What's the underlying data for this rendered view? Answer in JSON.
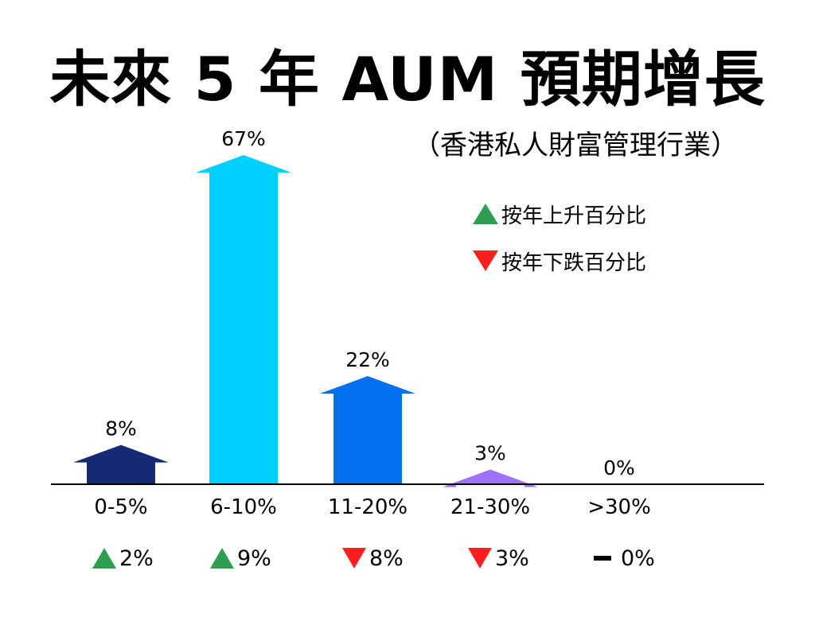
{
  "title": "未來 5 年 AUM 預期增長",
  "subtitle": "（香港私人財富管理行業）",
  "legend": {
    "up_label": "按年上升百分比",
    "down_label": "按年下跌百分比",
    "up_color": "#2e9e4f",
    "down_color": "#ff1e1e"
  },
  "chart_data": {
    "type": "bar",
    "title": "未來 5 年 AUM 預期增長",
    "subtitle": "（香港私人財富管理行業）",
    "categories": [
      "0-5%",
      "6-10%",
      "11-20%",
      "21-30%",
      ">30%"
    ],
    "values": [
      8,
      67,
      22,
      3,
      0
    ],
    "value_labels": [
      "8%",
      "67%",
      "22%",
      "3%",
      "0%"
    ],
    "bar_colors": [
      "#162a74",
      "#00d0ff",
      "#0070f0",
      "#a070ff",
      "#ffffff"
    ],
    "ylim": [
      0,
      67
    ],
    "grid": false,
    "bar_style": "up-arrow",
    "yoy_change": [
      {
        "direction": "up",
        "label": "2%"
      },
      {
        "direction": "up",
        "label": "9%"
      },
      {
        "direction": "down",
        "label": "8%"
      },
      {
        "direction": "down",
        "label": "3%"
      },
      {
        "direction": "flat",
        "label": "0%"
      }
    ]
  }
}
